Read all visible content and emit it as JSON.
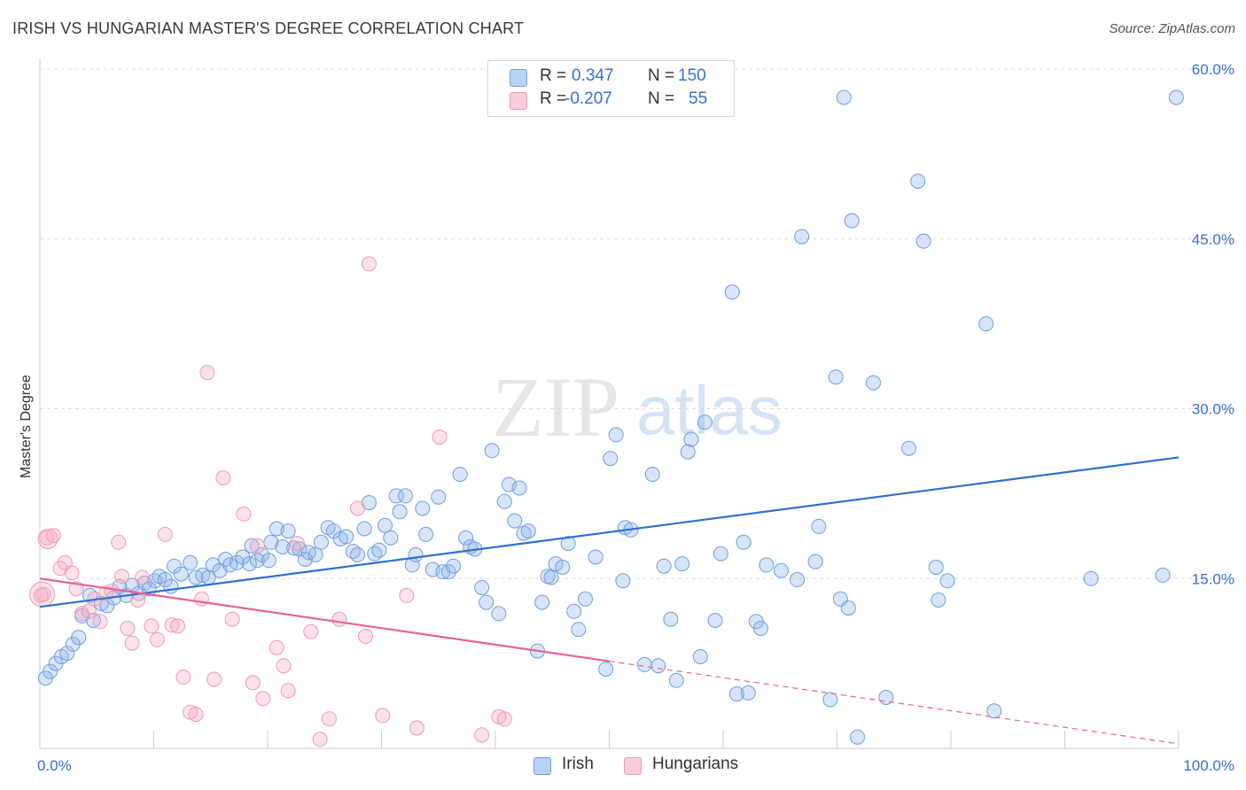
{
  "header": {
    "title": "IRISH VS HUNGARIAN MASTER'S DEGREE CORRELATION CHART",
    "source": "Source: ZipAtlas.com"
  },
  "watermark": {
    "zip": "ZIP",
    "atlas": "atlas"
  },
  "legend": {
    "rows": [
      {
        "r_label": "R =",
        "r_value": "0.347",
        "n_label": "N =",
        "n_value": "150",
        "color": "#a9c8f0"
      },
      {
        "r_label": "R =",
        "r_value": "-0.207",
        "n_label": "N =",
        "n_value": "55",
        "color": "#f6b9cd"
      }
    ]
  },
  "bottom_legend": {
    "irish": "Irish",
    "hungarians": "Hungarians"
  },
  "colors": {
    "irish_fill": "rgba(140,180,235,0.35)",
    "irish_stroke": "#6f9fde",
    "irish_line": "#2f6fd1",
    "hung_fill": "rgba(245,170,195,0.35)",
    "hung_stroke": "#ee9ab6",
    "hung_line": "#e8628f",
    "tick_text": "#3a6fcf",
    "grid": "#dddddd"
  },
  "chart_data": {
    "type": "scatter",
    "title": "IRISH VS HUNGARIAN MASTER'S DEGREE CORRELATION CHART",
    "xlabel": "",
    "ylabel": "Master's Degree",
    "xlim": [
      0,
      100
    ],
    "ylim": [
      0,
      60
    ],
    "x_tick_labels": [
      {
        "value": 0,
        "label": "0.0%"
      },
      {
        "value": 100,
        "label": "100.0%"
      }
    ],
    "y_tick_labels": [
      {
        "value": 15,
        "label": "15.0%"
      },
      {
        "value": 30,
        "label": "30.0%"
      },
      {
        "value": 45,
        "label": "45.0%"
      },
      {
        "value": 60,
        "label": "60.0%"
      }
    ],
    "grid": true,
    "legend_position": "top-center",
    "series": [
      {
        "name": "Irish",
        "r": 0.347,
        "n": 150,
        "trend": {
          "x": [
            0,
            100
          ],
          "y": [
            12.5,
            25.7
          ],
          "dashed_from": null
        },
        "points": [
          [
            0.5,
            6.2
          ],
          [
            0.9,
            6.8
          ],
          [
            1.4,
            7.5
          ],
          [
            1.9,
            8.1
          ],
          [
            2.4,
            8.4
          ],
          [
            2.9,
            9.2
          ],
          [
            3.4,
            9.8
          ],
          [
            3.7,
            11.7
          ],
          [
            4.4,
            13.5
          ],
          [
            4.7,
            11.3
          ],
          [
            5.4,
            12.8
          ],
          [
            5.9,
            12.6
          ],
          [
            6.5,
            13.3
          ],
          [
            7.0,
            14.3
          ],
          [
            7.6,
            13.5
          ],
          [
            8.1,
            14.4
          ],
          [
            8.7,
            13.7
          ],
          [
            9.2,
            14.6
          ],
          [
            9.6,
            14.1
          ],
          [
            10.1,
            14.8
          ],
          [
            10.5,
            15.2
          ],
          [
            11.0,
            14.9
          ],
          [
            11.5,
            14.3
          ],
          [
            11.8,
            16.1
          ],
          [
            12.4,
            15.4
          ],
          [
            13.2,
            16.4
          ],
          [
            13.7,
            15.1
          ],
          [
            14.3,
            15.3
          ],
          [
            14.8,
            15.1
          ],
          [
            15.2,
            16.2
          ],
          [
            15.8,
            15.7
          ],
          [
            16.3,
            16.7
          ],
          [
            16.7,
            16.2
          ],
          [
            17.3,
            16.4
          ],
          [
            17.8,
            16.9
          ],
          [
            18.4,
            16.3
          ],
          [
            18.6,
            17.9
          ],
          [
            19.1,
            16.6
          ],
          [
            19.5,
            17.1
          ],
          [
            20.1,
            16.6
          ],
          [
            20.3,
            18.2
          ],
          [
            20.8,
            19.4
          ],
          [
            21.3,
            17.8
          ],
          [
            21.8,
            19.2
          ],
          [
            22.3,
            17.7
          ],
          [
            22.8,
            17.6
          ],
          [
            23.3,
            16.7
          ],
          [
            23.6,
            17.3
          ],
          [
            24.2,
            17.1
          ],
          [
            24.7,
            18.2
          ],
          [
            25.3,
            19.5
          ],
          [
            25.8,
            19.2
          ],
          [
            26.4,
            18.5
          ],
          [
            26.9,
            18.7
          ],
          [
            27.5,
            17.4
          ],
          [
            27.9,
            17.1
          ],
          [
            28.5,
            19.4
          ],
          [
            28.9,
            21.7
          ],
          [
            29.4,
            17.2
          ],
          [
            29.8,
            17.5
          ],
          [
            30.3,
            19.7
          ],
          [
            30.8,
            18.6
          ],
          [
            31.3,
            22.3
          ],
          [
            31.6,
            20.9
          ],
          [
            32.1,
            22.3
          ],
          [
            32.7,
            16.2
          ],
          [
            33.0,
            17.1
          ],
          [
            33.6,
            21.2
          ],
          [
            33.9,
            18.9
          ],
          [
            34.5,
            15.8
          ],
          [
            35.0,
            22.2
          ],
          [
            35.4,
            15.6
          ],
          [
            35.9,
            15.6
          ],
          [
            36.3,
            16.1
          ],
          [
            36.9,
            24.2
          ],
          [
            37.4,
            18.6
          ],
          [
            37.8,
            17.8
          ],
          [
            38.2,
            17.6
          ],
          [
            38.8,
            14.2
          ],
          [
            39.2,
            12.9
          ],
          [
            39.7,
            26.3
          ],
          [
            40.3,
            11.9
          ],
          [
            40.8,
            21.8
          ],
          [
            41.2,
            23.3
          ],
          [
            41.7,
            20.1
          ],
          [
            42.1,
            23.0
          ],
          [
            42.5,
            19.0
          ],
          [
            42.9,
            19.2
          ],
          [
            43.7,
            8.6
          ],
          [
            44.1,
            12.9
          ],
          [
            44.6,
            15.2
          ],
          [
            44.9,
            15.1
          ],
          [
            45.3,
            16.3
          ],
          [
            45.9,
            16.0
          ],
          [
            46.4,
            18.1
          ],
          [
            46.9,
            12.1
          ],
          [
            47.3,
            10.5
          ],
          [
            47.9,
            13.2
          ],
          [
            48.8,
            16.9
          ],
          [
            49.7,
            7.0
          ],
          [
            50.1,
            25.6
          ],
          [
            50.6,
            27.7
          ],
          [
            51.2,
            14.8
          ],
          [
            51.4,
            19.5
          ],
          [
            51.9,
            19.3
          ],
          [
            53.1,
            7.4
          ],
          [
            53.8,
            24.2
          ],
          [
            54.3,
            7.3
          ],
          [
            54.8,
            16.1
          ],
          [
            55.4,
            11.4
          ],
          [
            55.9,
            6.0
          ],
          [
            56.4,
            16.3
          ],
          [
            56.9,
            26.2
          ],
          [
            57.2,
            27.3
          ],
          [
            58.0,
            8.1
          ],
          [
            58.4,
            28.8
          ],
          [
            59.3,
            11.3
          ],
          [
            59.8,
            17.2
          ],
          [
            60.8,
            40.3
          ],
          [
            61.2,
            4.8
          ],
          [
            61.8,
            18.2
          ],
          [
            62.2,
            4.9
          ],
          [
            62.9,
            11.2
          ],
          [
            63.3,
            10.6
          ],
          [
            63.8,
            16.2
          ],
          [
            65.1,
            15.7
          ],
          [
            66.5,
            14.9
          ],
          [
            66.9,
            45.2
          ],
          [
            68.1,
            16.5
          ],
          [
            68.4,
            19.6
          ],
          [
            69.4,
            4.3
          ],
          [
            69.9,
            32.8
          ],
          [
            70.3,
            13.2
          ],
          [
            70.6,
            57.5
          ],
          [
            71.0,
            12.4
          ],
          [
            71.3,
            46.6
          ],
          [
            71.8,
            1.0
          ],
          [
            73.2,
            32.3
          ],
          [
            74.3,
            4.5
          ],
          [
            76.3,
            26.5
          ],
          [
            77.1,
            50.1
          ],
          [
            77.6,
            44.8
          ],
          [
            78.7,
            16.0
          ],
          [
            78.9,
            13.1
          ],
          [
            79.7,
            14.8
          ],
          [
            83.1,
            37.5
          ],
          [
            83.8,
            3.3
          ],
          [
            92.3,
            15.0
          ],
          [
            99.8,
            57.5
          ],
          [
            98.6,
            15.3
          ]
        ]
      },
      {
        "name": "Hungarians",
        "r": -0.207,
        "n": 55,
        "trend": {
          "x": [
            0,
            100
          ],
          "y": [
            15.0,
            0.4
          ],
          "dashed_from": 50
        },
        "points": [
          [
            0.3,
            13.6
          ],
          [
            0.6,
            18.6
          ],
          [
            1.2,
            18.8
          ],
          [
            1.8,
            15.9
          ],
          [
            2.2,
            16.4
          ],
          [
            2.8,
            15.5
          ],
          [
            3.2,
            14.1
          ],
          [
            3.7,
            11.9
          ],
          [
            4.3,
            12.1
          ],
          [
            4.8,
            13.2
          ],
          [
            5.3,
            11.2
          ],
          [
            5.8,
            13.7
          ],
          [
            6.3,
            13.9
          ],
          [
            6.9,
            18.2
          ],
          [
            7.2,
            15.2
          ],
          [
            7.7,
            10.6
          ],
          [
            8.1,
            9.3
          ],
          [
            8.6,
            13.1
          ],
          [
            9.0,
            15.1
          ],
          [
            9.8,
            10.8
          ],
          [
            10.3,
            9.6
          ],
          [
            11.0,
            18.9
          ],
          [
            11.6,
            10.9
          ],
          [
            12.1,
            10.8
          ],
          [
            12.6,
            6.3
          ],
          [
            13.2,
            3.2
          ],
          [
            13.7,
            3.0
          ],
          [
            14.2,
            13.2
          ],
          [
            14.7,
            33.2
          ],
          [
            15.3,
            6.1
          ],
          [
            16.1,
            23.9
          ],
          [
            16.9,
            11.4
          ],
          [
            17.9,
            20.7
          ],
          [
            18.7,
            5.8
          ],
          [
            19.1,
            17.9
          ],
          [
            19.6,
            4.4
          ],
          [
            20.8,
            8.9
          ],
          [
            21.4,
            7.3
          ],
          [
            21.8,
            5.1
          ],
          [
            22.6,
            18.1
          ],
          [
            23.8,
            10.3
          ],
          [
            24.6,
            0.8
          ],
          [
            25.4,
            2.6
          ],
          [
            26.3,
            11.4
          ],
          [
            27.9,
            21.2
          ],
          [
            28.6,
            9.9
          ],
          [
            28.9,
            42.8
          ],
          [
            30.1,
            2.9
          ],
          [
            32.2,
            13.5
          ],
          [
            33.1,
            1.8
          ],
          [
            35.1,
            27.5
          ],
          [
            38.8,
            1.2
          ],
          [
            40.3,
            2.8
          ],
          [
            40.8,
            2.6
          ],
          [
            0.1,
            13.5
          ]
        ]
      }
    ]
  }
}
